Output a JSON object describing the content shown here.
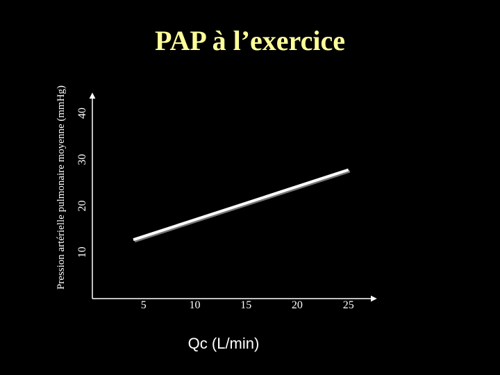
{
  "colors": {
    "background": "#000000",
    "title": "#ffff99",
    "axis": "#ffffff",
    "line": "#ffffff",
    "text": "#ffffff"
  },
  "chart_data": {
    "type": "line",
    "title": "PAP à l’exercice",
    "xlabel": "Qc (L/min)",
    "ylabel": "Pression artérielle pulmonaire moyenne (mmHg)",
    "x_ticks": [
      5,
      10,
      15,
      20,
      25
    ],
    "y_ticks": [
      10,
      20,
      30,
      40
    ],
    "xlim": [
      0,
      27.6
    ],
    "ylim": [
      0,
      44.2
    ],
    "grid": false,
    "series": [
      {
        "x": [
          4,
          25
        ],
        "y": [
          12.7,
          27.8
        ]
      }
    ]
  }
}
